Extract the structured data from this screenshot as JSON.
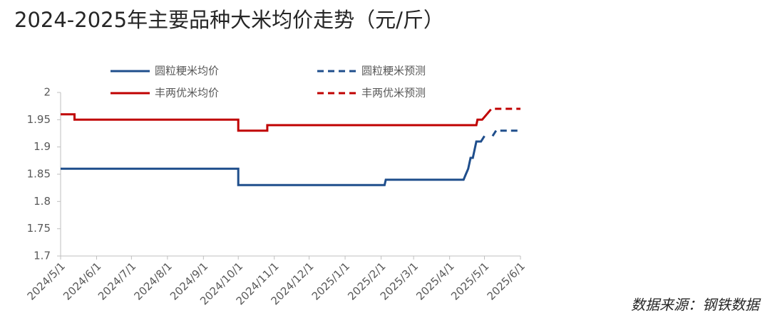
{
  "chart_data": {
    "type": "line",
    "title": "2024-2025年主要品种大米均价走势（元/斤）",
    "source": "数据来源：钢铁数据",
    "xlim": [
      "2024/5/1",
      "2025/6/1"
    ],
    "xticks": [
      "2024/5/1",
      "2024/6/1",
      "2024/7/1",
      "2024/8/1",
      "2024/9/1",
      "2024/10/1",
      "2024/11/1",
      "2024/12/1",
      "2025/1/1",
      "2025/2/1",
      "2025/3/1",
      "2025/4/1",
      "2025/5/1",
      "2025/6/1"
    ],
    "ylim": [
      1.7,
      2
    ],
    "yticks": [
      1.7,
      1.75,
      1.8,
      1.85,
      1.9,
      1.95,
      2
    ],
    "grid": false,
    "series": [
      {
        "name": "圆粒粳米均价",
        "color": "#1f4e8c",
        "dashed": false,
        "x": [
          "2024/5/1",
          "2024/10/1",
          "2024/10/1",
          "2025/2/4",
          "2025/2/5",
          "2025/4/13",
          "2025/4/15",
          "2025/4/17",
          "2025/4/19",
          "2025/4/21",
          "2025/4/24",
          "2025/4/28",
          "2025/5/1"
        ],
        "values": [
          1.86,
          1.86,
          1.83,
          1.83,
          1.84,
          1.84,
          1.85,
          1.86,
          1.88,
          1.88,
          1.91,
          1.91,
          1.92
        ]
      },
      {
        "name": "圆粒粳米预测",
        "color": "#1f4e8c",
        "dashed": true,
        "x": [
          "2025/5/8",
          "2025/5/11",
          "2025/6/1"
        ],
        "values": [
          1.92,
          1.93,
          1.93
        ]
      },
      {
        "name": "丰两优米均价",
        "color": "#c00000",
        "dashed": false,
        "x": [
          "2024/5/1",
          "2024/5/13",
          "2024/5/13",
          "2024/10/1",
          "2024/10/1",
          "2024/10/26",
          "2024/10/26",
          "2025/4/24",
          "2025/4/25",
          "2025/4/29",
          "2025/5/3"
        ],
        "values": [
          1.96,
          1.96,
          1.95,
          1.95,
          1.93,
          1.93,
          1.94,
          1.94,
          1.95,
          1.95,
          1.96
        ]
      },
      {
        "name": "丰两优米预测",
        "color": "#c00000",
        "dashed": true,
        "x": [
          "2025/5/3",
          "2025/5/7",
          "2025/6/1"
        ],
        "values": [
          1.96,
          1.97,
          1.97
        ]
      }
    ]
  }
}
